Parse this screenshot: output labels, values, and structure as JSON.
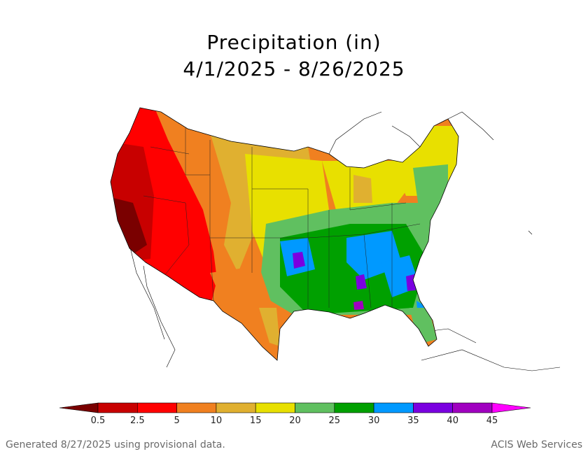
{
  "title_line1": "Precipitation (in)",
  "title_line2": "4/1/2025 - 8/26/2025",
  "legend": {
    "ticks": [
      "0.5",
      "2.5",
      "5",
      "10",
      "15",
      "20",
      "25",
      "30",
      "35",
      "40",
      "45"
    ],
    "colors": [
      "#7a0000",
      "#c80000",
      "#ff0000",
      "#f08020",
      "#e0b030",
      "#e8e000",
      "#60c060",
      "#00a000",
      "#0099ff",
      "#7a00e0",
      "#a000c0",
      "#ff00ff"
    ]
  },
  "footer": {
    "left": "Generated 8/27/2025 using provisional data.",
    "right": "ACIS Web Services"
  }
}
